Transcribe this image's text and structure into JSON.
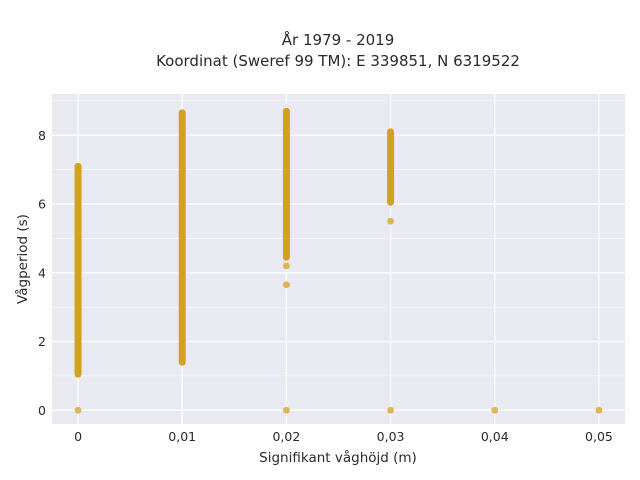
{
  "chart_data": {
    "type": "scatter",
    "title_line1": "År 1979 - 2019",
    "title_line2": "Koordinat (Sweref 99 TM): E 339851, N 6319522",
    "xlabel": "Signifikant våghöjd (m)",
    "ylabel": "Vågperiod (s)",
    "xlim": [
      -0.0025,
      0.0525
    ],
    "ylim": [
      -0.4,
      9.2
    ],
    "xticks": [
      0,
      0.01,
      0.02,
      0.03,
      0.04,
      0.05
    ],
    "xtick_labels": [
      "0",
      "0,01",
      "0,02",
      "0,03",
      "0,04",
      "0,05"
    ],
    "yticks": [
      0,
      2,
      4,
      6,
      8
    ],
    "ytick_labels": [
      "0",
      "2",
      "4",
      "6",
      "8"
    ],
    "grid": true,
    "colors": {
      "marker": "#d4a020",
      "background": "#e9e9f1",
      "grid": "#ffffff"
    },
    "columns": [
      {
        "x": 0,
        "y_min": 1.05,
        "y_max": 7.1,
        "zero_point": true,
        "outliers": []
      },
      {
        "x": 0.01,
        "y_min": 1.4,
        "y_max": 8.65,
        "zero_point": false,
        "outliers": []
      },
      {
        "x": 0.02,
        "y_min": 4.45,
        "y_max": 8.7,
        "zero_point": true,
        "outliers": [
          4.2,
          3.65
        ]
      },
      {
        "x": 0.03,
        "y_min": 6.05,
        "y_max": 8.1,
        "zero_point": true,
        "outliers": [
          5.5
        ]
      },
      {
        "x": 0.04,
        "y_min": null,
        "y_max": null,
        "zero_point": true,
        "outliers": []
      },
      {
        "x": 0.05,
        "y_min": null,
        "y_max": null,
        "zero_point": true,
        "outliers": []
      }
    ]
  }
}
